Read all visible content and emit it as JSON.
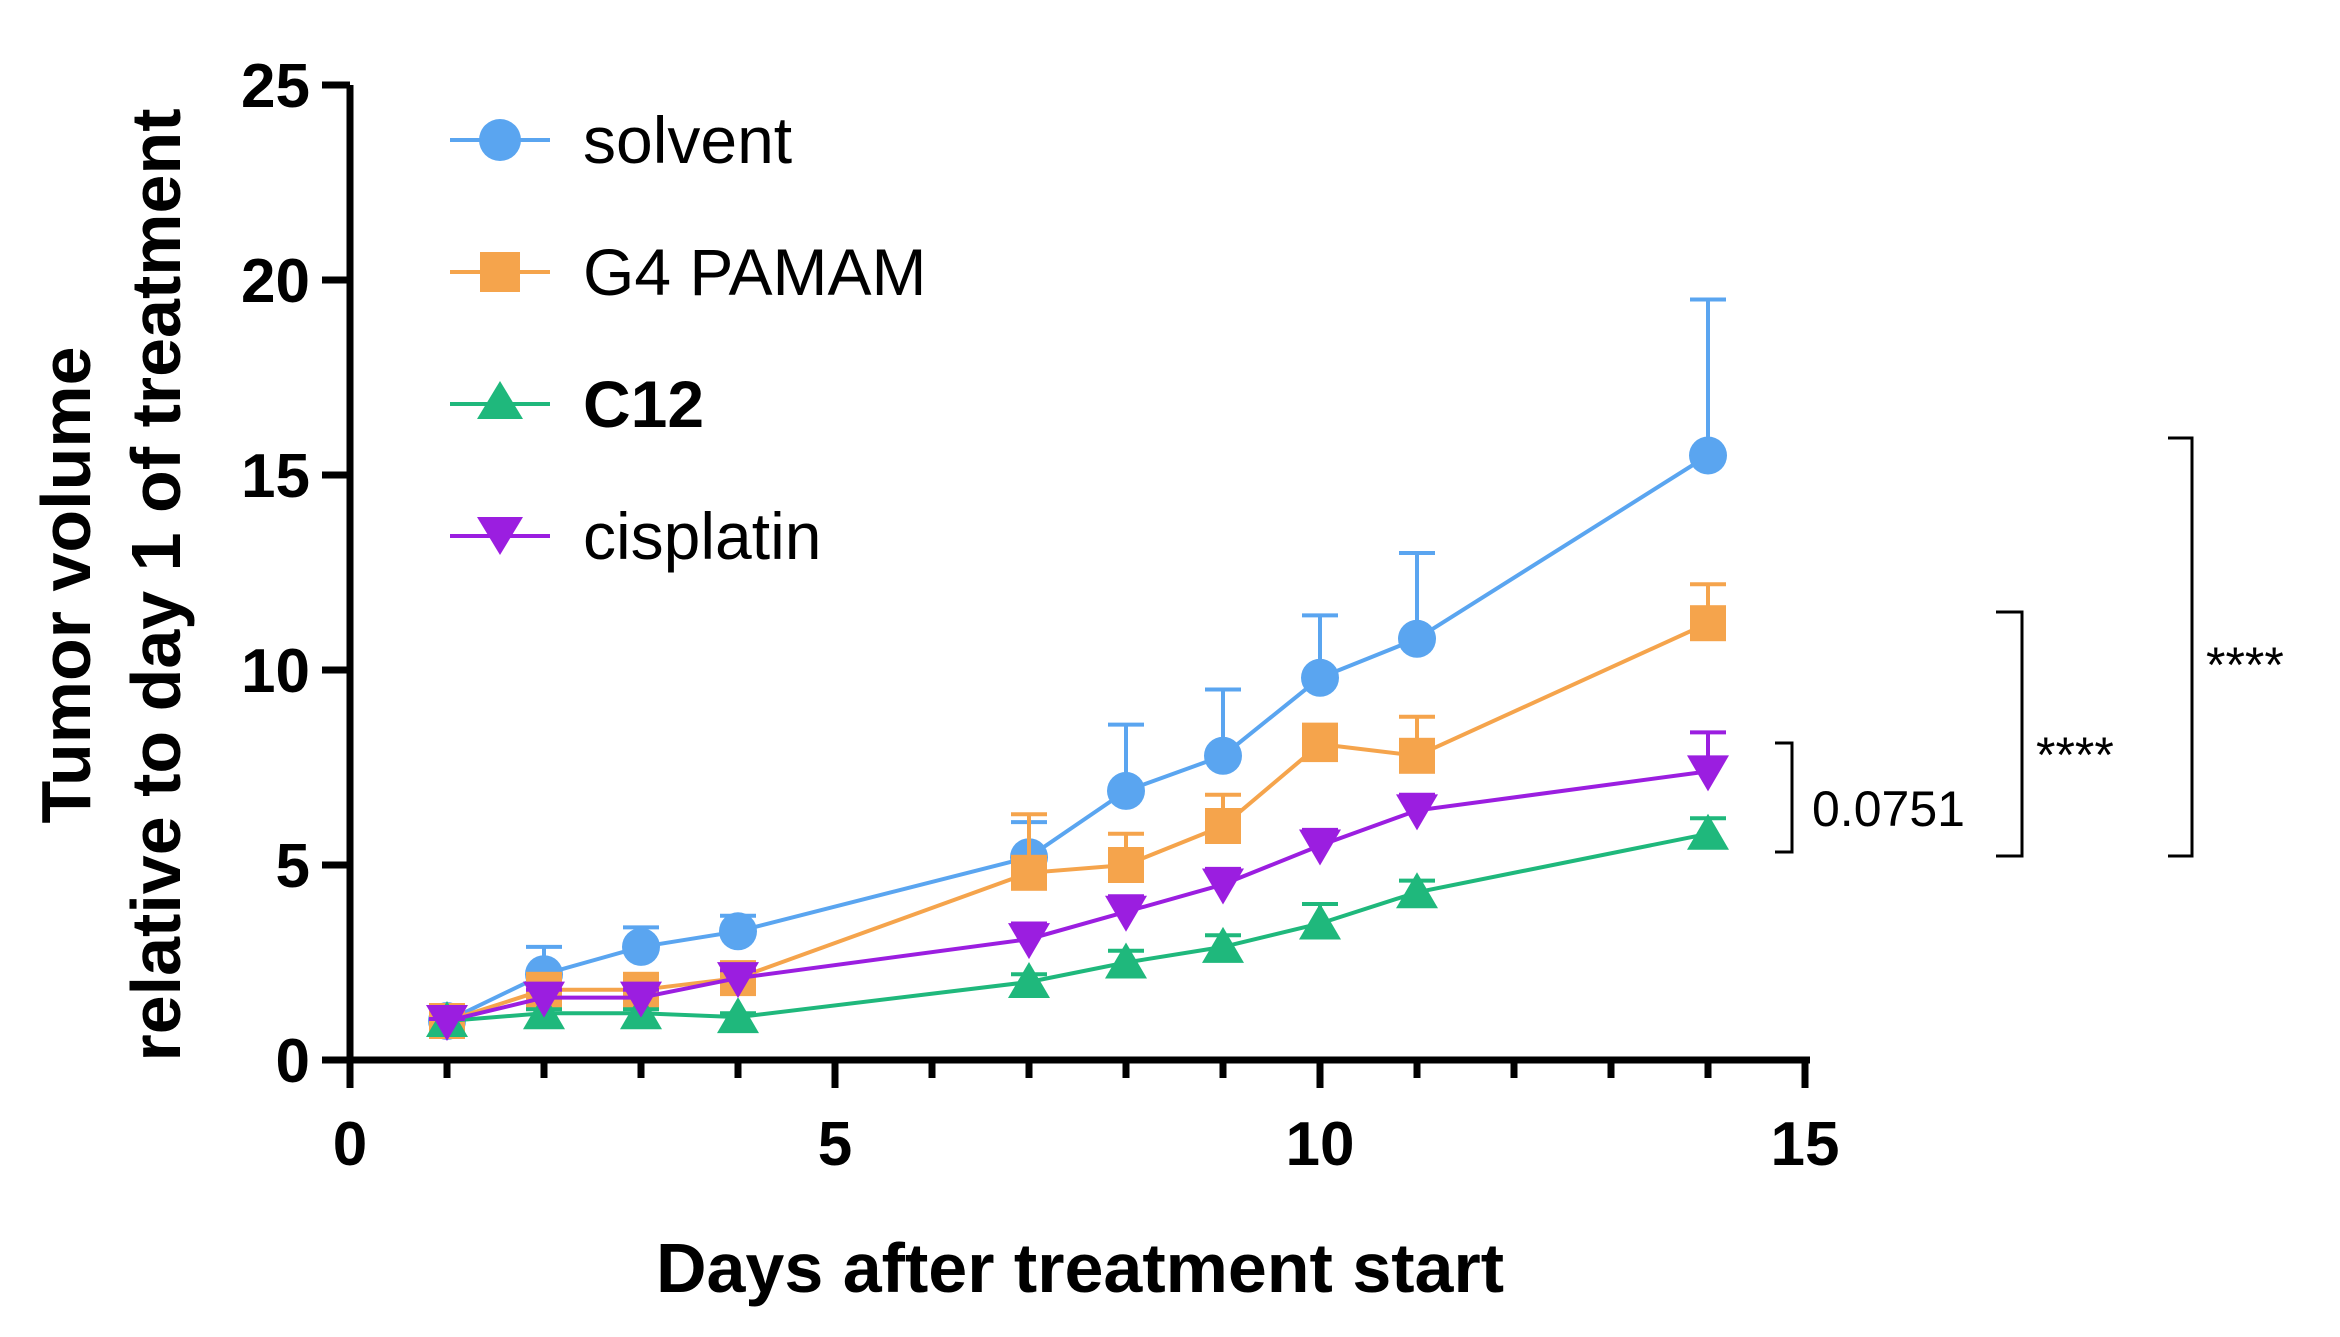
{
  "chart_data": {
    "type": "line",
    "title": "",
    "xlabel": "Days after treatment start",
    "ylabel_line1": "Tumor volume",
    "ylabel_line2": "relative to day 1 of treatment",
    "xlim": [
      0,
      15
    ],
    "ylim": [
      0,
      25
    ],
    "xticks": [
      0,
      5,
      10,
      15
    ],
    "yticks": [
      0,
      5,
      10,
      15,
      20,
      25
    ],
    "x": [
      1,
      2,
      3,
      4,
      7,
      8,
      9,
      10,
      11,
      14
    ],
    "series": [
      {
        "name": "solvent",
        "color": "#5aa5f0",
        "marker": "circle",
        "bold": false,
        "values": [
          1.0,
          2.2,
          2.9,
          3.3,
          5.2,
          6.9,
          7.8,
          9.8,
          10.8,
          15.5
        ],
        "errors": [
          0.1,
          0.7,
          0.5,
          0.4,
          0.9,
          1.7,
          1.7,
          1.6,
          2.2,
          4.0
        ]
      },
      {
        "name": "G4 PAMAM",
        "color": "#f5a44c",
        "marker": "square",
        "bold": false,
        "values": [
          1.0,
          1.8,
          1.8,
          2.1,
          4.8,
          5.0,
          6.0,
          8.1,
          7.8,
          11.2
        ],
        "errors": [
          0.1,
          0.2,
          0.2,
          0.2,
          1.5,
          0.8,
          0.8,
          0.5,
          1.0,
          1.0
        ]
      },
      {
        "name": "C12",
        "color": "#1fb87c",
        "marker": "triangle-up",
        "bold": true,
        "values": [
          1.0,
          1.2,
          1.2,
          1.1,
          2.0,
          2.5,
          2.9,
          3.5,
          4.3,
          5.8
        ],
        "errors": [
          0.05,
          0.1,
          0.1,
          0.1,
          0.2,
          0.3,
          0.3,
          0.5,
          0.3,
          0.4
        ]
      },
      {
        "name": "cisplatin",
        "color": "#9b1ee0",
        "marker": "triangle-down",
        "bold": false,
        "values": [
          1.0,
          1.6,
          1.6,
          2.1,
          3.1,
          3.8,
          4.5,
          5.5,
          6.4,
          7.4
        ],
        "errors": [
          0.05,
          0.2,
          0.2,
          0.2,
          0.4,
          0.4,
          0.4,
          0.4,
          0.4,
          1.0
        ]
      }
    ],
    "legend": "top-left",
    "annotations": [
      {
        "text": "0.0751",
        "y_top": 7.9,
        "y_bottom": 5.3
      },
      {
        "text": "****",
        "y_top": 11.5,
        "y_bottom": 5.2
      },
      {
        "text": "****",
        "y_top": 15.9,
        "y_bottom": 5.2
      }
    ]
  }
}
